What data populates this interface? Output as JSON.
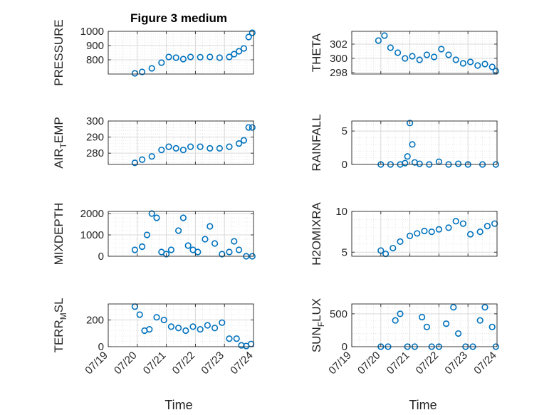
{
  "figure": {
    "title": "Figure 3 medium",
    "marker_color": "#0072BD",
    "axis_color": "#262626",
    "grid_color": "#d9d9d9"
  },
  "chart_data": [
    {
      "type": "scatter",
      "ylabel": "PRESSURE",
      "ylim": [
        700,
        1000
      ],
      "yticks": [
        800,
        900,
        1000
      ],
      "grid": true,
      "x_range": [
        "07/19",
        "07/24"
      ],
      "xticks": [
        "07/19",
        "07/20",
        "07/21",
        "07/22",
        "07/23",
        "07/24"
      ],
      "x": [
        "07/19 22:00",
        "07/20 04:00",
        "07/20 12:00",
        "07/20 20:00",
        "07/21 02:00",
        "07/21 08:00",
        "07/21 14:00",
        "07/21 20:00",
        "07/22 04:00",
        "07/22 12:00",
        "07/22 20:00",
        "07/23 04:00",
        "07/23 08:00",
        "07/23 12:00",
        "07/23 16:00",
        "07/23 20:00",
        "07/23 23:00"
      ],
      "y": [
        705,
        715,
        740,
        780,
        820,
        815,
        805,
        820,
        818,
        820,
        815,
        820,
        840,
        860,
        880,
        960,
        990
      ]
    },
    {
      "type": "scatter",
      "ylabel": "THETA",
      "ylim": [
        297.8,
        303.8
      ],
      "yticks": [
        298,
        300,
        302
      ],
      "grid": true,
      "x_range": [
        "07/19",
        "07/24"
      ],
      "xticks": [
        "07/19",
        "07/20",
        "07/21",
        "07/22",
        "07/23",
        "07/24"
      ],
      "x": [
        "07/19 22:00",
        "07/20 03:00",
        "07/20 08:00",
        "07/20 14:00",
        "07/20 20:00",
        "07/21 02:00",
        "07/21 08:00",
        "07/21 14:00",
        "07/21 20:00",
        "07/22 02:00",
        "07/22 08:00",
        "07/22 14:00",
        "07/22 20:00",
        "07/23 02:00",
        "07/23 08:00",
        "07/23 14:00",
        "07/23 20:00",
        "07/23 23:00"
      ],
      "y": [
        302.5,
        303.2,
        301.5,
        300.8,
        300.0,
        300.3,
        299.8,
        300.5,
        300.2,
        301.3,
        300.5,
        299.8,
        299.3,
        299.5,
        299.0,
        299.2,
        298.8,
        298.2
      ]
    },
    {
      "type": "scatter",
      "ylabel": "AIR_TEMP",
      "ylim": [
        273,
        300
      ],
      "yticks": [
        280,
        290,
        300
      ],
      "grid": true,
      "x_range": [
        "07/19",
        "07/24"
      ],
      "xticks": [
        "07/19",
        "07/20",
        "07/21",
        "07/22",
        "07/23",
        "07/24"
      ],
      "x": [
        "07/19 22:00",
        "07/20 04:00",
        "07/20 12:00",
        "07/20 20:00",
        "07/21 02:00",
        "07/21 08:00",
        "07/21 14:00",
        "07/21 20:00",
        "07/22 04:00",
        "07/22 12:00",
        "07/22 20:00",
        "07/23 04:00",
        "07/23 12:00",
        "07/23 16:00",
        "07/23 20:00",
        "07/23 23:00"
      ],
      "y": [
        274,
        276,
        278,
        282,
        284,
        283,
        282,
        284,
        284,
        283,
        283,
        284,
        286,
        288,
        296,
        296
      ]
    },
    {
      "type": "scatter",
      "ylabel": "RAINFALL",
      "ylim": [
        0,
        6.5
      ],
      "yticks": [
        0,
        5
      ],
      "grid": true,
      "x_range": [
        "07/19",
        "07/24"
      ],
      "xticks": [
        "07/19",
        "07/20",
        "07/21",
        "07/22",
        "07/23",
        "07/24"
      ],
      "x": [
        "07/20 00:00",
        "07/20 08:00",
        "07/20 16:00",
        "07/20 20:00",
        "07/20 22:00",
        "07/21 00:00",
        "07/21 02:00",
        "07/21 04:00",
        "07/21 08:00",
        "07/21 16:00",
        "07/22 00:00",
        "07/22 08:00",
        "07/22 16:00",
        "07/23 00:00",
        "07/23 12:00",
        "07/23 23:00"
      ],
      "y": [
        0,
        0,
        0,
        0.2,
        1.2,
        6.2,
        3.0,
        0.3,
        0.1,
        0,
        0.4,
        0,
        0.1,
        0,
        0,
        0
      ]
    },
    {
      "type": "scatter",
      "ylabel": "MIXDEPTH",
      "ylim": [
        0,
        2100
      ],
      "yticks": [
        0,
        1000,
        2000
      ],
      "grid": true,
      "x_range": [
        "07/19",
        "07/24"
      ],
      "xticks": [
        "07/19",
        "07/20",
        "07/21",
        "07/22",
        "07/23",
        "07/24"
      ],
      "x": [
        "07/19 22:00",
        "07/20 04:00",
        "07/20 08:00",
        "07/20 12:00",
        "07/20 16:00",
        "07/20 20:00",
        "07/21 00:00",
        "07/21 04:00",
        "07/21 10:00",
        "07/21 14:00",
        "07/21 18:00",
        "07/21 22:00",
        "07/22 02:00",
        "07/22 08:00",
        "07/22 12:00",
        "07/22 16:00",
        "07/22 22:00",
        "07/23 04:00",
        "07/23 08:00",
        "07/23 12:00",
        "07/23 18:00",
        "07/23 23:00"
      ],
      "y": [
        300,
        450,
        1000,
        2000,
        1800,
        200,
        100,
        300,
        1200,
        1800,
        500,
        300,
        200,
        800,
        1400,
        600,
        100,
        200,
        700,
        300,
        0,
        0
      ]
    },
    {
      "type": "scatter",
      "ylabel": "H2OMIXRA",
      "ylim": [
        4.5,
        10
      ],
      "yticks": [
        5,
        10
      ],
      "grid": true,
      "x_range": [
        "07/19",
        "07/24"
      ],
      "xticks": [
        "07/19",
        "07/20",
        "07/21",
        "07/22",
        "07/23",
        "07/24"
      ],
      "x": [
        "07/20 00:00",
        "07/20 04:00",
        "07/20 10:00",
        "07/20 16:00",
        "07/21 00:00",
        "07/21 06:00",
        "07/21 12:00",
        "07/21 18:00",
        "07/22 00:00",
        "07/22 08:00",
        "07/22 14:00",
        "07/22 20:00",
        "07/23 02:00",
        "07/23 10:00",
        "07/23 16:00",
        "07/23 22:00"
      ],
      "y": [
        5.2,
        4.8,
        5.5,
        6.3,
        7.0,
        7.3,
        7.6,
        7.5,
        7.8,
        8.0,
        8.8,
        8.5,
        7.2,
        7.5,
        8.2,
        8.5
      ]
    },
    {
      "type": "scatter",
      "ylabel": "TERR_MSL",
      "ylim": [
        0,
        320
      ],
      "yticks": [
        0,
        200
      ],
      "grid": true,
      "x_range": [
        "07/19",
        "07/24"
      ],
      "xticks": [
        "07/19",
        "07/20",
        "07/21",
        "07/22",
        "07/23",
        "07/24"
      ],
      "x": [
        "07/19 22:00",
        "07/20 02:00",
        "07/20 06:00",
        "07/20 10:00",
        "07/20 16:00",
        "07/20 22:00",
        "07/21 04:00",
        "07/21 10:00",
        "07/21 16:00",
        "07/21 22:00",
        "07/22 04:00",
        "07/22 10:00",
        "07/22 16:00",
        "07/22 22:00",
        "07/23 04:00",
        "07/23 10:00",
        "07/23 14:00",
        "07/23 18:00",
        "07/23 22:00"
      ],
      "y": [
        300,
        240,
        120,
        130,
        220,
        200,
        150,
        140,
        120,
        150,
        130,
        160,
        140,
        180,
        60,
        60,
        10,
        5,
        20
      ]
    },
    {
      "type": "scatter",
      "ylabel": "SUN_FLUX",
      "ylim": [
        0,
        650
      ],
      "yticks": [
        0,
        500
      ],
      "grid": true,
      "x_range": [
        "07/19",
        "07/24"
      ],
      "xticks": [
        "07/19",
        "07/20",
        "07/21",
        "07/22",
        "07/23",
        "07/24"
      ],
      "x": [
        "07/20 00:00",
        "07/20 06:00",
        "07/20 12:00",
        "07/20 16:00",
        "07/20 22:00",
        "07/21 04:00",
        "07/21 10:00",
        "07/21 14:00",
        "07/21 18:00",
        "07/22 00:00",
        "07/22 06:00",
        "07/22 12:00",
        "07/22 16:00",
        "07/22 22:00",
        "07/23 04:00",
        "07/23 10:00",
        "07/23 14:00",
        "07/23 20:00",
        "07/23 23:00"
      ],
      "y": [
        0,
        0,
        400,
        500,
        0,
        0,
        450,
        300,
        0,
        0,
        350,
        600,
        200,
        0,
        0,
        400,
        600,
        300,
        0
      ]
    }
  ],
  "labels": {
    "xlabel_left": "Time",
    "xlabel_right": "Time"
  }
}
